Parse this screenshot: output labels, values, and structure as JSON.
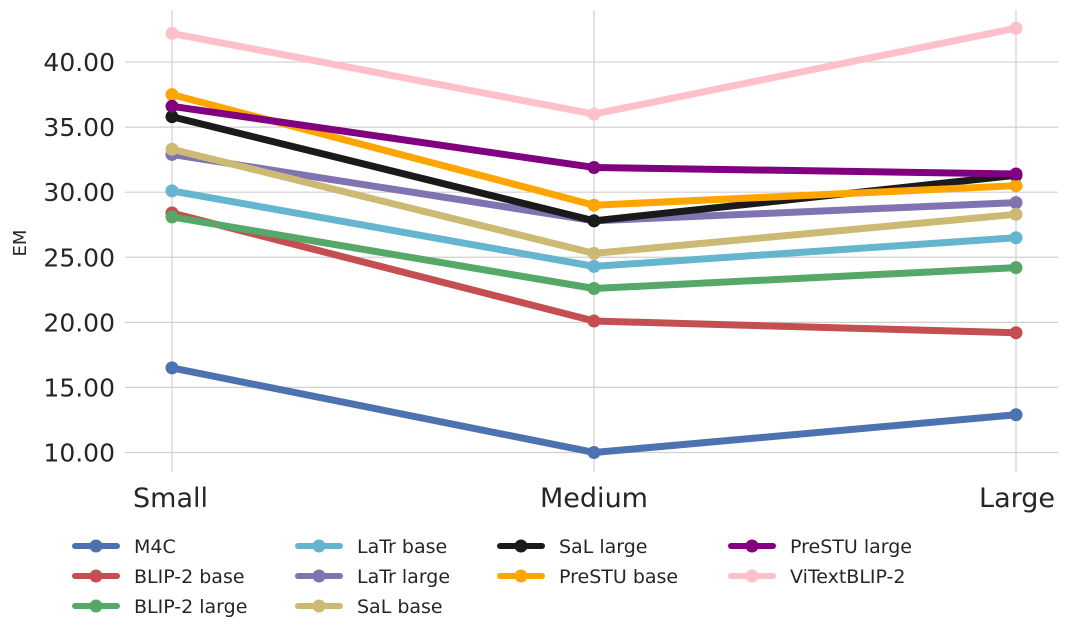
{
  "chart_data": {
    "type": "line",
    "title": "",
    "xlabel": "",
    "ylabel": "EM",
    "categories": [
      "Small",
      "Medium",
      "Large"
    ],
    "ylim": [
      8.5,
      44
    ],
    "yticks": [
      10,
      15,
      20,
      25,
      30,
      35,
      40
    ],
    "ytick_labels": [
      "10.00",
      "15.00",
      "20.00",
      "25.00",
      "30.00",
      "35.00",
      "40.00"
    ],
    "grid": true,
    "legend_position": "bottom",
    "series": [
      {
        "name": "M4C",
        "color": "#4c72b0",
        "values": [
          16.5,
          10.0,
          12.9
        ]
      },
      {
        "name": "BLIP-2 base",
        "color": "#c44e52",
        "values": [
          28.4,
          20.1,
          19.2
        ]
      },
      {
        "name": "BLIP-2 large",
        "color": "#55a868",
        "values": [
          28.1,
          22.6,
          24.2
        ]
      },
      {
        "name": "LaTr base",
        "color": "#64b5cd",
        "values": [
          30.1,
          24.3,
          26.5
        ]
      },
      {
        "name": "LaTr large",
        "color": "#8172b2",
        "values": [
          32.9,
          27.8,
          29.2
        ]
      },
      {
        "name": "SaL base",
        "color": "#ccb974",
        "values": [
          33.3,
          25.3,
          28.3
        ]
      },
      {
        "name": "SaL large",
        "color": "#1a1a1a",
        "values": [
          35.8,
          27.8,
          31.3
        ]
      },
      {
        "name": "PreSTU base",
        "color": "#ffa500",
        "values": [
          37.5,
          29.0,
          30.5
        ]
      },
      {
        "name": "PreSTU large",
        "color": "#800080",
        "values": [
          36.6,
          31.9,
          31.4
        ]
      },
      {
        "name": "ViTextBLIP-2",
        "color": "#ffc0cb",
        "values": [
          42.2,
          36.0,
          42.6
        ]
      }
    ]
  }
}
